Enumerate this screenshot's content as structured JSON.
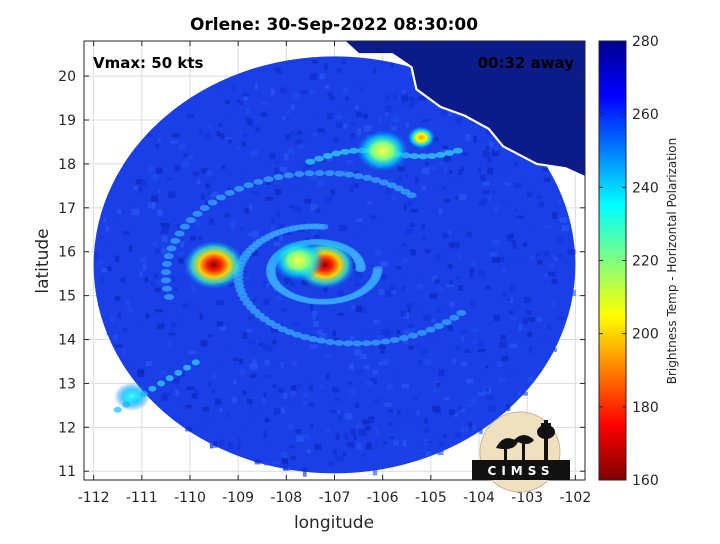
{
  "chart_data": {
    "type": "heatmap",
    "title": "Orlene: 30-Sep-2022 08:30:00",
    "xlabel": "longitude",
    "ylabel": "latitude",
    "xlim": [
      -112.2,
      -101.8
    ],
    "ylim": [
      10.8,
      20.8
    ],
    "x_ticks": [
      -112,
      -111,
      -110,
      -109,
      -108,
      -107,
      -106,
      -105,
      -104,
      -103,
      -102
    ],
    "y_ticks": [
      11,
      12,
      13,
      14,
      15,
      16,
      17,
      18,
      19,
      20
    ],
    "grid": true,
    "swath": {
      "center_lon": -107.0,
      "center_lat": 15.7,
      "radius_deg_lon": 5.0,
      "radius_deg_lat": 4.75
    },
    "annotations": {
      "vmax": "Vmax: 50 kts",
      "time_offset": "00:32 away"
    },
    "colorbar": {
      "label": "Brightness Temp - Horizontal Polarization",
      "range": [
        160,
        280
      ],
      "ticks": [
        160,
        180,
        200,
        220,
        240,
        260,
        280
      ],
      "colormap": [
        "#7f0000",
        "#ff0000",
        "#ff8000",
        "#ffff00",
        "#80ff80",
        "#00ffff",
        "#0080ff",
        "#0000ff",
        "#00008f"
      ]
    },
    "background_value": 268,
    "features": [
      {
        "name": "eyewall-core",
        "lon": -107.2,
        "lat": 15.7,
        "value": 170
      },
      {
        "name": "eyewall-inner",
        "lon": -107.75,
        "lat": 15.8,
        "value": 215
      },
      {
        "name": "western-band-core",
        "lon": -109.5,
        "lat": 15.7,
        "value": 175
      },
      {
        "name": "northeast-band-cell",
        "lon": -106.0,
        "lat": 18.3,
        "value": 205
      },
      {
        "name": "east-band-cell",
        "lon": -105.2,
        "lat": 18.6,
        "value": 195
      },
      {
        "name": "southwest-band-cell",
        "lon": -111.2,
        "lat": 12.7,
        "value": 225
      }
    ]
  },
  "logo": {
    "text": "CIMSS"
  }
}
